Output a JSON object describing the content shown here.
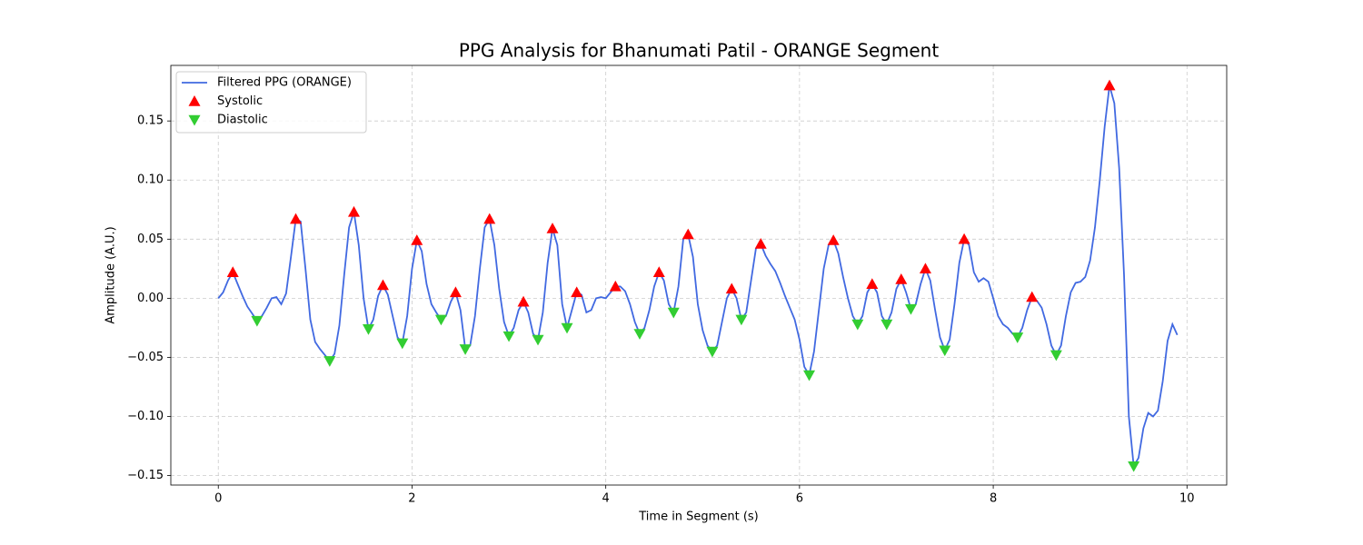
{
  "chart_data": {
    "type": "line",
    "title": "PPG Analysis for Bhanumati Patil - ORANGE Segment",
    "x_label": "Time in Segment (s)",
    "y_label": "Amplitude (A.U.)",
    "xlim": [
      -0.49,
      10.41
    ],
    "ylim": [
      -0.158,
      0.197
    ],
    "xticks": [
      0,
      2,
      4,
      6,
      8,
      10
    ],
    "yticks": [
      {
        "value": -0.15,
        "label": "−0.15"
      },
      {
        "value": -0.1,
        "label": "−0.10"
      },
      {
        "value": -0.05,
        "label": "−0.05"
      },
      {
        "value": 0,
        "label": "0.00"
      },
      {
        "value": 0.05,
        "label": "0.05"
      },
      {
        "value": 0.1,
        "label": "0.10"
      },
      {
        "value": 0.15,
        "label": "0.15"
      }
    ],
    "grid": true,
    "legend": "upper left",
    "series": [
      {
        "name": "Filtered PPG (ORANGE)",
        "type": "line",
        "color": "#4169e1",
        "x": [
          0,
          0.05,
          0.1,
          0.15,
          0.2,
          0.25,
          0.3,
          0.35,
          0.4,
          0.45,
          0.5,
          0.55,
          0.6,
          0.65,
          0.7,
          0.75,
          0.8,
          0.85,
          0.9,
          0.95,
          1.0,
          1.05,
          1.1,
          1.15,
          1.2,
          1.25,
          1.3,
          1.35,
          1.4,
          1.45,
          1.5,
          1.55,
          1.6,
          1.65,
          1.7,
          1.75,
          1.8,
          1.85,
          1.9,
          1.95,
          2.0,
          2.05,
          2.1,
          2.15,
          2.2,
          2.25,
          2.3,
          2.35,
          2.4,
          2.45,
          2.5,
          2.55,
          2.6,
          2.65,
          2.7,
          2.75,
          2.8,
          2.85,
          2.9,
          2.95,
          3.0,
          3.05,
          3.1,
          3.15,
          3.2,
          3.25,
          3.3,
          3.35,
          3.4,
          3.45,
          3.5,
          3.55,
          3.6,
          3.65,
          3.7,
          3.75,
          3.8,
          3.85,
          3.9,
          3.95,
          4.0,
          4.05,
          4.1,
          4.15,
          4.2,
          4.25,
          4.3,
          4.35,
          4.4,
          4.45,
          4.5,
          4.55,
          4.6,
          4.65,
          4.7,
          4.75,
          4.8,
          4.85,
          4.9,
          4.95,
          5.0,
          5.05,
          5.1,
          5.15,
          5.2,
          5.25,
          5.3,
          5.35,
          5.4,
          5.45,
          5.5,
          5.55,
          5.6,
          5.65,
          5.7,
          5.75,
          5.8,
          5.85,
          5.9,
          5.95,
          6.0,
          6.05,
          6.1,
          6.15,
          6.2,
          6.25,
          6.3,
          6.35,
          6.4,
          6.45,
          6.5,
          6.55,
          6.6,
          6.65,
          6.7,
          6.75,
          6.8,
          6.85,
          6.9,
          6.95,
          7.0,
          7.05,
          7.1,
          7.15,
          7.2,
          7.25,
          7.3,
          7.35,
          7.4,
          7.45,
          7.5,
          7.55,
          7.6,
          7.65,
          7.7,
          7.75,
          7.8,
          7.85,
          7.9,
          7.95,
          8.0,
          8.05,
          8.1,
          8.15,
          8.2,
          8.25,
          8.3,
          8.35,
          8.4,
          8.45,
          8.5,
          8.55,
          8.6,
          8.65,
          8.7,
          8.75,
          8.8,
          8.85,
          8.9,
          8.95,
          9.0,
          9.05,
          9.1,
          9.15,
          9.2,
          9.25,
          9.3,
          9.35,
          9.4,
          9.45,
          9.5,
          9.55,
          9.6,
          9.65,
          9.7,
          9.75,
          9.8,
          9.85,
          9.9
        ],
        "values": [
          0,
          0.005,
          0.015,
          0.022,
          0.012,
          0.002,
          -0.007,
          -0.013,
          -0.019,
          -0.015,
          -0.008,
          0.0,
          0.001,
          -0.005,
          0.004,
          0.035,
          0.067,
          0.065,
          0.025,
          -0.018,
          -0.037,
          -0.043,
          -0.048,
          -0.053,
          -0.047,
          -0.023,
          0.02,
          0.06,
          0.073,
          0.045,
          0.0,
          -0.026,
          -0.018,
          0.002,
          0.011,
          0.003,
          -0.015,
          -0.033,
          -0.038,
          -0.015,
          0.025,
          0.049,
          0.04,
          0.012,
          -0.005,
          -0.012,
          -0.018,
          -0.015,
          -0.003,
          0.005,
          -0.01,
          -0.043,
          -0.04,
          -0.015,
          0.025,
          0.06,
          0.067,
          0.045,
          0.008,
          -0.02,
          -0.032,
          -0.025,
          -0.01,
          -0.003,
          -0.012,
          -0.03,
          -0.035,
          -0.012,
          0.03,
          0.059,
          0.045,
          -0.005,
          -0.025,
          -0.01,
          0.005,
          0.003,
          -0.012,
          -0.01,
          0.0,
          0.001,
          0.0,
          0.005,
          0.01,
          0.01,
          0.006,
          -0.005,
          -0.02,
          -0.03,
          -0.025,
          -0.01,
          0.01,
          0.022,
          0.015,
          -0.005,
          -0.012,
          0.01,
          0.05,
          0.054,
          0.035,
          -0.005,
          -0.027,
          -0.04,
          -0.045,
          -0.04,
          -0.02,
          0.0,
          0.008,
          0.0,
          -0.018,
          -0.012,
          0.015,
          0.042,
          0.046,
          0.036,
          0.029,
          0.023,
          0.013,
          0.002,
          -0.008,
          -0.018,
          -0.035,
          -0.058,
          -0.065,
          -0.045,
          -0.01,
          0.025,
          0.045,
          0.049,
          0.038,
          0.018,
          0.0,
          -0.015,
          -0.022,
          -0.015,
          0.005,
          0.012,
          0.005,
          -0.015,
          -0.022,
          -0.012,
          0.008,
          0.016,
          0.005,
          -0.009,
          -0.005,
          0.012,
          0.025,
          0.015,
          -0.01,
          -0.033,
          -0.044,
          -0.035,
          -0.005,
          0.03,
          0.05,
          0.045,
          0.022,
          0.014,
          0.017,
          0.014,
          0.0,
          -0.015,
          -0.022,
          -0.025,
          -0.03,
          -0.033,
          -0.025,
          -0.01,
          0.001,
          -0.002,
          -0.008,
          -0.022,
          -0.04,
          -0.048,
          -0.04,
          -0.015,
          0.005,
          0.013,
          0.014,
          0.018,
          0.032,
          0.06,
          0.1,
          0.145,
          0.18,
          0.165,
          0.11,
          0.02,
          -0.1,
          -0.142,
          -0.135,
          -0.11,
          -0.097,
          -0.1,
          -0.095,
          -0.07,
          -0.036,
          -0.022,
          -0.031
        ]
      },
      {
        "name": "Systolic",
        "type": "scatter",
        "marker": "triangle-up",
        "color": "#ff0000",
        "x": [
          0.15,
          0.8,
          1.4,
          1.7,
          2.05,
          2.45,
          2.8,
          3.15,
          3.45,
          3.7,
          4.1,
          4.55,
          4.85,
          5.3,
          5.6,
          6.35,
          6.75,
          7.05,
          7.3,
          7.7,
          8.4,
          9.2
        ],
        "values": [
          0.022,
          0.067,
          0.073,
          0.011,
          0.049,
          0.005,
          0.067,
          -0.003,
          0.059,
          0.005,
          0.01,
          0.022,
          0.054,
          0.008,
          0.046,
          0.049,
          0.012,
          0.016,
          0.025,
          0.05,
          0.001,
          0.18
        ]
      },
      {
        "name": "Diastolic",
        "type": "scatter",
        "marker": "triangle-down",
        "color": "#32cd32",
        "x": [
          0.4,
          1.15,
          1.55,
          1.9,
          2.3,
          2.55,
          3.0,
          3.3,
          3.6,
          4.35,
          4.7,
          5.1,
          5.4,
          6.1,
          6.6,
          6.9,
          7.15,
          7.5,
          8.25,
          8.65,
          9.45
        ],
        "values": [
          -0.019,
          -0.053,
          -0.026,
          -0.038,
          -0.018,
          -0.043,
          -0.032,
          -0.035,
          -0.025,
          -0.03,
          -0.012,
          -0.045,
          -0.018,
          -0.065,
          -0.022,
          -0.022,
          -0.009,
          -0.044,
          -0.033,
          -0.048,
          -0.142
        ]
      }
    ]
  }
}
